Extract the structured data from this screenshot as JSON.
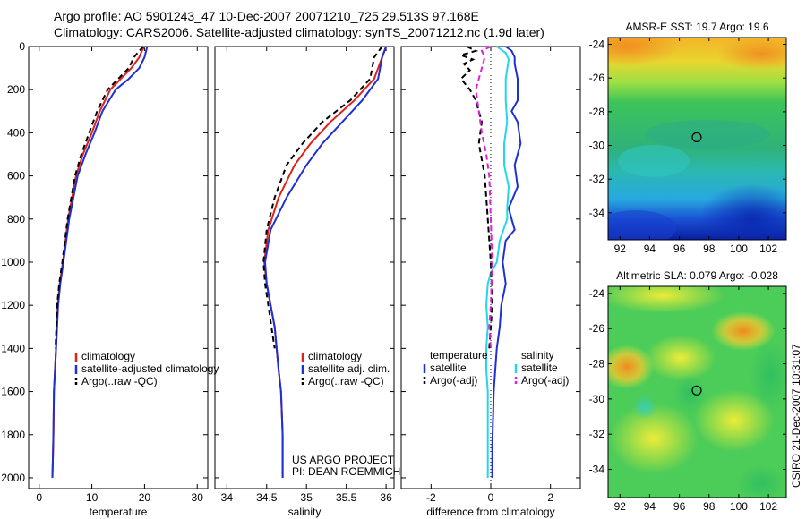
{
  "header": {
    "line1": "Argo profile: AO 5901243_47 10-Dec-2007 20071210_725 29.513S 97.168E",
    "line2": "Climatology: CARS2006. Satellite-adjusted climatology: synTS_20071212.nc (1.9d later)"
  },
  "side_label": "CSIRO 21-Dec-2007 10:31:07",
  "colors": {
    "climatology": "#e0201a",
    "satellite": "#1f2fd6",
    "argo": "#000000",
    "sal_sat": "#22d8e8",
    "sal_argo": "#e020d8"
  },
  "chart_data": [
    {
      "type": "line",
      "xlabel": "temperature",
      "xlim": [
        -2,
        32
      ],
      "ylim": [
        0,
        2050
      ],
      "y_reversed": true,
      "xticks": [
        0,
        10,
        20,
        30
      ],
      "yticks": [
        0,
        200,
        400,
        600,
        800,
        1000,
        1200,
        1400,
        1600,
        1800,
        2000
      ],
      "legend": {
        "entries": [
          "climatology",
          "satellite-adjusted climatology",
          "Argo(..raw -QC)"
        ],
        "placement": "lower-right"
      },
      "series": [
        {
          "name": "climatology",
          "color": "#e0201a",
          "dash": "",
          "x": [
            20.0,
            19.5,
            19.0,
            17.5,
            15.5,
            13.5,
            11.5,
            10.0,
            8.3,
            7.0,
            5.5,
            4.5,
            3.9,
            3.5,
            3.2,
            3.0,
            2.8,
            2.7,
            2.6,
            2.5
          ],
          "y": [
            0,
            20,
            50,
            100,
            150,
            200,
            300,
            400,
            500,
            600,
            800,
            1000,
            1100,
            1200,
            1400,
            1500,
            1600,
            1800,
            1900,
            2000
          ]
        },
        {
          "name": "satellite-adjusted climatology",
          "color": "#1f2fd6",
          "dash": "",
          "x": [
            20.5,
            20.3,
            20.0,
            19.0,
            17.0,
            14.5,
            12.0,
            10.5,
            8.8,
            7.3,
            5.7,
            4.6,
            4.0,
            3.6,
            3.2,
            3.0,
            2.8,
            2.7,
            2.6,
            2.5
          ],
          "y": [
            0,
            20,
            50,
            100,
            150,
            200,
            300,
            400,
            500,
            600,
            800,
            1000,
            1100,
            1200,
            1400,
            1500,
            1600,
            1800,
            1900,
            2000
          ]
        },
        {
          "name": "Argo(..raw -QC)",
          "color": "#000000",
          "dash": "6,4",
          "x": [
            19.8,
            19.0,
            18.0,
            17.0,
            15.0,
            13.0,
            11.0,
            9.5,
            8.0,
            6.8,
            5.4,
            4.4,
            3.8,
            3.4,
            3.1
          ],
          "y": [
            0,
            20,
            50,
            100,
            150,
            200,
            300,
            400,
            500,
            600,
            800,
            1000,
            1100,
            1200,
            1400
          ]
        }
      ]
    },
    {
      "type": "line",
      "xlabel": "salinity",
      "xlim": [
        33.85,
        36.1
      ],
      "ylim": [
        0,
        2050
      ],
      "y_reversed": true,
      "xticks": [
        34,
        34.5,
        35,
        35.5,
        36
      ],
      "legend": {
        "entries": [
          "climatology",
          "satellite adj. clim.",
          "Argo(..raw -QC)"
        ],
        "placement": "lower-right"
      },
      "annotations": [
        "US ARGO PROJECT",
        "PI: DEAN ROEMMICH"
      ],
      "series": [
        {
          "name": "climatology",
          "color": "#e0201a",
          "dash": "",
          "x": [
            36.0,
            35.95,
            35.85,
            35.6,
            35.3,
            35.05,
            34.85,
            34.65,
            34.52,
            34.47,
            34.5,
            34.55,
            34.6,
            34.65,
            34.68,
            34.7,
            34.7,
            34.7
          ],
          "y": [
            0,
            50,
            150,
            250,
            350,
            450,
            550,
            700,
            850,
            1000,
            1100,
            1200,
            1300,
            1500,
            1600,
            1800,
            1900,
            2000
          ]
        },
        {
          "name": "satellite adj. clim.",
          "color": "#1f2fd6",
          "dash": "",
          "x": [
            36.0,
            35.95,
            35.9,
            35.7,
            35.45,
            35.2,
            35.0,
            34.75,
            34.55,
            34.48,
            34.5,
            34.55,
            34.6,
            34.65,
            34.68,
            34.7,
            34.7,
            34.7
          ],
          "y": [
            0,
            50,
            150,
            250,
            350,
            450,
            550,
            700,
            850,
            1000,
            1100,
            1200,
            1300,
            1500,
            1600,
            1800,
            1900,
            2000
          ]
        },
        {
          "name": "Argo(..raw -QC)",
          "color": "#000000",
          "dash": "6,4",
          "x": [
            35.95,
            35.85,
            35.8,
            35.55,
            35.2,
            34.95,
            34.75,
            34.6,
            34.5,
            34.46,
            34.48,
            34.52,
            34.56,
            34.6
          ],
          "y": [
            0,
            50,
            150,
            250,
            350,
            450,
            550,
            700,
            850,
            1000,
            1100,
            1200,
            1300,
            1400
          ]
        }
      ]
    },
    {
      "type": "line",
      "xlabel": "difference from climatology",
      "xlim": [
        -3,
        3
      ],
      "ylim": [
        0,
        2050
      ],
      "y_reversed": true,
      "xticks": [
        -2,
        0,
        2
      ],
      "legend": {
        "entries": [
          "temperature",
          "satellite",
          "Argo(-adj)",
          "salinity",
          "satellite",
          "Argo(-adj)"
        ],
        "placement": "lower-center"
      },
      "series": [
        {
          "name": "temperature satellite",
          "color": "#1f2fd6",
          "dash": "",
          "x": [
            0.5,
            0.7,
            0.8,
            0.8,
            0.9,
            0.9,
            0.7,
            0.9,
            1.0,
            0.8,
            0.9,
            0.6,
            0.7,
            0.8,
            0.5,
            0.4,
            0.5,
            0.35,
            0.3,
            0.2,
            0.15,
            0.1,
            0.08,
            0.05,
            0.05
          ],
          "y": [
            0,
            20,
            50,
            80,
            150,
            250,
            300,
            350,
            450,
            550,
            650,
            750,
            800,
            850,
            900,
            1000,
            1100,
            1200,
            1300,
            1400,
            1500,
            1600,
            1700,
            1850,
            2000
          ]
        },
        {
          "name": "salinity satellite",
          "color": "#22d8e8",
          "dash": "",
          "x": [
            0.2,
            0.5,
            0.6,
            0.5,
            0.5,
            0.55,
            0.45,
            0.45,
            0.6,
            0.55,
            0.55,
            0.3,
            0.2,
            0.0,
            -0.1,
            -0.15,
            -0.1,
            -0.15,
            -0.15,
            -0.1,
            -0.1,
            -0.1,
            -0.1
          ],
          "y": [
            0,
            30,
            60,
            150,
            250,
            350,
            450,
            550,
            650,
            750,
            800,
            900,
            1000,
            1050,
            1100,
            1200,
            1300,
            1400,
            1500,
            1600,
            1700,
            1850,
            2000
          ]
        },
        {
          "name": "temperature Argo(-adj)",
          "color": "#000000",
          "dash": "6,4",
          "x": [
            -0.8,
            -0.5,
            -1.0,
            -0.6,
            -0.9,
            -0.7,
            -1.0,
            -0.7,
            -0.5,
            -0.3,
            -0.4,
            -0.2,
            -0.1,
            0.0,
            0.05,
            -0.05
          ],
          "y": [
            0,
            20,
            40,
            60,
            80,
            110,
            150,
            200,
            250,
            350,
            450,
            600,
            800,
            1000,
            1200,
            1400
          ]
        },
        {
          "name": "salinity Argo(-adj)",
          "color": "#e020d8",
          "dash": "6,4",
          "x": [
            0.0,
            -0.3,
            -0.2,
            -0.3,
            -0.5,
            -0.4,
            -0.3,
            -0.15,
            -0.05,
            0.0,
            0.05,
            0.0,
            -0.05,
            0.0
          ],
          "y": [
            0,
            20,
            50,
            100,
            200,
            300,
            400,
            500,
            600,
            800,
            1000,
            1200,
            1300,
            1400
          ]
        }
      ]
    },
    {
      "type": "heatmap",
      "title": "AMSR-E SST: 19.7 Argo: 19.6",
      "xlim": [
        91.2,
        103.2
      ],
      "ylim": [
        -35.6,
        -23.6
      ],
      "xticks": [
        92,
        94,
        96,
        98,
        100,
        102
      ],
      "yticks": [
        -24,
        -26,
        -28,
        -30,
        -32,
        -34
      ],
      "marker": {
        "x": 97.168,
        "y": -29.513
      }
    },
    {
      "type": "heatmap",
      "title": "Altimetric SLA: 0.079 Argo: -0.028",
      "xlim": [
        91.2,
        103.2
      ],
      "ylim": [
        -35.6,
        -23.6
      ],
      "xticks": [
        92,
        94,
        96,
        98,
        100,
        102
      ],
      "yticks": [
        -24,
        -26,
        -28,
        -30,
        -32,
        -34
      ],
      "marker": {
        "x": 97.168,
        "y": -29.513
      }
    }
  ]
}
